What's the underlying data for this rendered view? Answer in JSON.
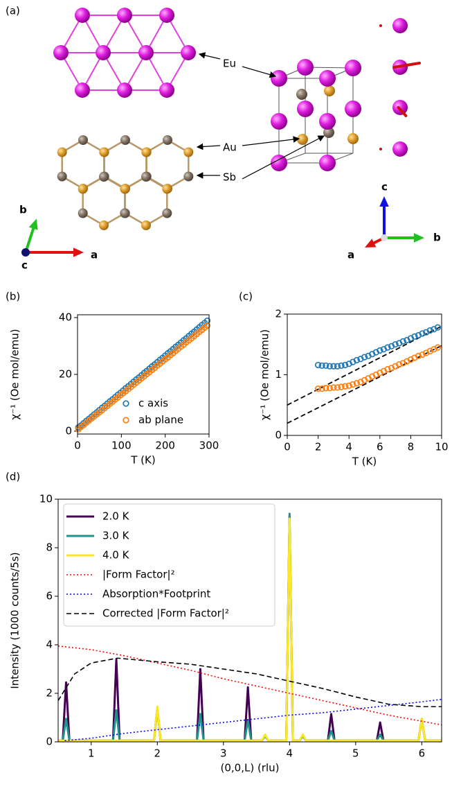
{
  "panel_a": {
    "label": "(a)",
    "atoms": [
      "Eu",
      "Au",
      "Sb"
    ],
    "axes_left": [
      "b",
      "c",
      "a"
    ],
    "axes_right": [
      "c",
      "b",
      "a"
    ]
  },
  "chart_data": [
    {
      "type": "scatter",
      "panel": "(b)",
      "x_label": "T (K)",
      "y_label": "χ⁻¹ (Oe mol/emu)",
      "xlim": [
        0,
        300
      ],
      "xticks": [
        0,
        100,
        200,
        300
      ],
      "ylim": [
        -1,
        41
      ],
      "yticks": [
        0,
        20,
        40
      ],
      "legend": "lower right",
      "series": [
        {
          "name": "c axis",
          "color": "#1f77b4",
          "x": [
            2,
            8,
            14,
            20,
            26,
            32,
            38,
            44,
            50,
            56,
            62,
            68,
            74,
            80,
            86,
            92,
            98,
            104,
            110,
            116,
            122,
            128,
            134,
            140,
            146,
            152,
            158,
            164,
            170,
            176,
            182,
            188,
            194,
            200,
            206,
            212,
            218,
            224,
            230,
            236,
            242,
            248,
            254,
            260,
            266,
            272,
            278,
            284,
            290,
            296
          ],
          "values": [
            1.3,
            2.0,
            2.8,
            3.6,
            4.3,
            5.1,
            5.9,
            6.6,
            7.4,
            8.2,
            8.9,
            9.7,
            10.5,
            11.2,
            12.0,
            12.8,
            13.5,
            14.3,
            15.1,
            15.8,
            16.6,
            17.4,
            18.2,
            18.9,
            19.7,
            20.5,
            21.2,
            22.0,
            22.8,
            23.5,
            24.3,
            25.1,
            25.8,
            26.6,
            27.4,
            28.1,
            28.9,
            29.7,
            30.4,
            31.2,
            32.0,
            32.7,
            33.5,
            34.3,
            35.0,
            35.8,
            36.6,
            37.4,
            38.1,
            38.9
          ]
        },
        {
          "name": "ab plane",
          "color": "#ff7f0e",
          "x": [
            2,
            8,
            14,
            20,
            26,
            32,
            38,
            44,
            50,
            56,
            62,
            68,
            74,
            80,
            86,
            92,
            98,
            104,
            110,
            116,
            122,
            128,
            134,
            140,
            146,
            152,
            158,
            164,
            170,
            176,
            182,
            188,
            194,
            200,
            206,
            212,
            218,
            224,
            230,
            236,
            242,
            248,
            254,
            260,
            266,
            272,
            278,
            284,
            290,
            296
          ],
          "values": [
            0.7,
            1.5,
            2.2,
            3.0,
            3.7,
            4.5,
            5.2,
            6.0,
            6.7,
            7.4,
            8.2,
            8.9,
            9.7,
            10.4,
            11.2,
            11.9,
            12.7,
            13.4,
            14.1,
            14.9,
            15.6,
            16.4,
            17.1,
            17.9,
            18.6,
            19.3,
            20.1,
            20.8,
            21.6,
            22.3,
            23.1,
            23.8,
            24.6,
            25.3,
            26.0,
            26.8,
            27.5,
            28.3,
            29.0,
            29.8,
            30.5,
            31.3,
            32.0,
            32.7,
            33.5,
            34.2,
            35.0,
            35.7,
            36.5,
            37.2
          ]
        }
      ]
    },
    {
      "type": "scatter",
      "panel": "(c)",
      "x_label": "T (K)",
      "y_label": "χ⁻¹ (Oe mol/emu)",
      "xlim": [
        0,
        10
      ],
      "xticks": [
        0,
        2,
        4,
        6,
        8,
        10
      ],
      "ylim": [
        0,
        2
      ],
      "yticks": [
        0,
        1,
        2
      ],
      "series": [
        {
          "color": "#1f77b4",
          "x": [
            2.0,
            2.25,
            2.5,
            2.75,
            3.0,
            3.25,
            3.5,
            3.75,
            4.0,
            4.25,
            4.5,
            4.75,
            5.0,
            5.25,
            5.5,
            5.75,
            6.0,
            6.25,
            6.5,
            6.75,
            7.0,
            7.25,
            7.5,
            7.75,
            8.0,
            8.25,
            8.5,
            8.75,
            9.0,
            9.25,
            9.5,
            9.75
          ],
          "values": [
            1.16,
            1.15,
            1.15,
            1.14,
            1.14,
            1.14,
            1.15,
            1.16,
            1.18,
            1.21,
            1.24,
            1.26,
            1.29,
            1.31,
            1.34,
            1.37,
            1.4,
            1.42,
            1.45,
            1.47,
            1.5,
            1.52,
            1.55,
            1.57,
            1.6,
            1.63,
            1.65,
            1.68,
            1.7,
            1.73,
            1.75,
            1.78
          ]
        },
        {
          "color": "#ff7f0e",
          "x": [
            2.0,
            2.25,
            2.5,
            2.75,
            3.0,
            3.25,
            3.5,
            3.75,
            4.0,
            4.25,
            4.5,
            4.75,
            5.0,
            5.25,
            5.5,
            5.75,
            6.0,
            6.25,
            6.5,
            6.75,
            7.0,
            7.25,
            7.5,
            7.75,
            8.0,
            8.25,
            8.5,
            8.75,
            9.0,
            9.25,
            9.5,
            9.75
          ],
          "values": [
            0.77,
            0.77,
            0.78,
            0.78,
            0.79,
            0.79,
            0.8,
            0.81,
            0.82,
            0.84,
            0.86,
            0.88,
            0.91,
            0.94,
            0.97,
            1.0,
            1.03,
            1.06,
            1.09,
            1.11,
            1.14,
            1.17,
            1.19,
            1.22,
            1.25,
            1.28,
            1.31,
            1.33,
            1.36,
            1.39,
            1.42,
            1.45
          ]
        }
      ],
      "reference_lines": [
        {
          "x": [
            0,
            10
          ],
          "values": [
            0.5,
            1.8
          ],
          "color": "#000000",
          "linestyle": "dashed"
        },
        {
          "x": [
            0,
            10
          ],
          "values": [
            0.2,
            1.48
          ],
          "color": "#000000",
          "linestyle": "dashed"
        }
      ]
    },
    {
      "type": "line",
      "panel": "(d)",
      "x_label": "(0,0,L) (rlu)",
      "y_label": "Intensity (1000 counts/5s)",
      "xlim": [
        0.5,
        6.3
      ],
      "xticks": [
        1,
        2,
        3,
        4,
        5,
        6
      ],
      "ylim": [
        0,
        10
      ],
      "yticks": [
        0,
        2,
        4,
        6,
        8,
        10
      ],
      "legend": "upper left",
      "series": [
        {
          "name": "2.0 K",
          "color": "#440154",
          "linestyle": "solid",
          "x": [
            0.5,
            0.57,
            0.62,
            0.67,
            1.33,
            1.38,
            1.43,
            1.95,
            2.0,
            2.05,
            2.6,
            2.65,
            2.7,
            3.32,
            3.37,
            3.42,
            3.58,
            3.63,
            3.68,
            3.95,
            4.0,
            4.05,
            4.15,
            4.2,
            4.25,
            4.58,
            4.63,
            4.68,
            5.32,
            5.37,
            5.42,
            5.95,
            6.0,
            6.05,
            6.3
          ],
          "values": [
            0.05,
            0.05,
            2.45,
            0.05,
            0.05,
            3.4,
            0.05,
            0.05,
            1.4,
            0.05,
            0.05,
            3.0,
            0.05,
            0.05,
            2.25,
            0.05,
            0.05,
            0.25,
            0.05,
            0.05,
            9.3,
            0.05,
            0.05,
            0.25,
            0.05,
            0.05,
            1.15,
            0.05,
            0.05,
            0.8,
            0.05,
            0.05,
            0.95,
            0.05,
            0.05
          ]
        },
        {
          "name": "3.0 K",
          "color": "#21918c",
          "linestyle": "solid",
          "x": [
            0.5,
            0.57,
            0.62,
            0.67,
            1.33,
            1.38,
            1.43,
            1.95,
            2.0,
            2.05,
            2.6,
            2.65,
            2.7,
            3.32,
            3.37,
            3.42,
            3.58,
            3.63,
            3.68,
            3.95,
            4.0,
            4.05,
            4.15,
            4.2,
            4.25,
            4.58,
            4.63,
            4.68,
            5.32,
            5.37,
            5.42,
            5.95,
            6.0,
            6.05,
            6.3
          ],
          "values": [
            0.05,
            0.05,
            0.95,
            0.05,
            0.05,
            1.3,
            0.05,
            0.05,
            1.4,
            0.05,
            0.05,
            1.15,
            0.05,
            0.05,
            0.9,
            0.05,
            0.05,
            0.25,
            0.05,
            0.05,
            9.4,
            0.05,
            0.05,
            0.25,
            0.05,
            0.05,
            0.45,
            0.05,
            0.05,
            0.3,
            0.05,
            0.05,
            0.95,
            0.05,
            0.05
          ]
        },
        {
          "name": "4.0 K",
          "color": "#fde725",
          "linestyle": "solid",
          "x": [
            0.5,
            1.95,
            2.0,
            2.05,
            3.58,
            3.63,
            3.68,
            3.95,
            4.0,
            4.05,
            4.15,
            4.2,
            4.25,
            5.95,
            6.0,
            6.05,
            6.3
          ],
          "values": [
            0.05,
            0.05,
            1.45,
            0.05,
            0.05,
            0.3,
            0.05,
            0.05,
            9.2,
            0.05,
            0.05,
            0.3,
            0.05,
            0.05,
            0.95,
            0.05,
            0.05
          ]
        },
        {
          "name": "|Form Factor|²",
          "color": "#ff0000",
          "linestyle": "dotted",
          "x": [
            0.5,
            1,
            1.5,
            2,
            2.5,
            3,
            3.5,
            4,
            4.5,
            5,
            5.5,
            6,
            6.3
          ],
          "values": [
            3.95,
            3.8,
            3.55,
            3.25,
            2.95,
            2.6,
            2.3,
            2.0,
            1.7,
            1.4,
            1.1,
            0.85,
            0.7
          ]
        },
        {
          "name": "Absorption*Footprint",
          "color": "#0000ff",
          "linestyle": "dotted",
          "x": [
            0.6,
            1,
            1.5,
            2,
            2.5,
            3,
            3.5,
            4,
            4.5,
            5,
            5.5,
            6,
            6.3
          ],
          "values": [
            0.05,
            0.15,
            0.35,
            0.5,
            0.65,
            0.8,
            0.95,
            1.1,
            1.2,
            1.35,
            1.5,
            1.65,
            1.75
          ]
        },
        {
          "name": "Corrected |Form Factor|²",
          "color": "#000000",
          "linestyle": "dashed",
          "x": [
            0.5,
            0.75,
            1,
            1.4,
            2,
            2.5,
            3,
            3.5,
            4,
            4.5,
            5,
            5.5,
            6,
            6.3
          ],
          "values": [
            1.7,
            2.8,
            3.25,
            3.45,
            3.3,
            3.2,
            3.0,
            2.8,
            2.5,
            2.2,
            1.85,
            1.55,
            1.45,
            1.45
          ]
        }
      ]
    }
  ]
}
